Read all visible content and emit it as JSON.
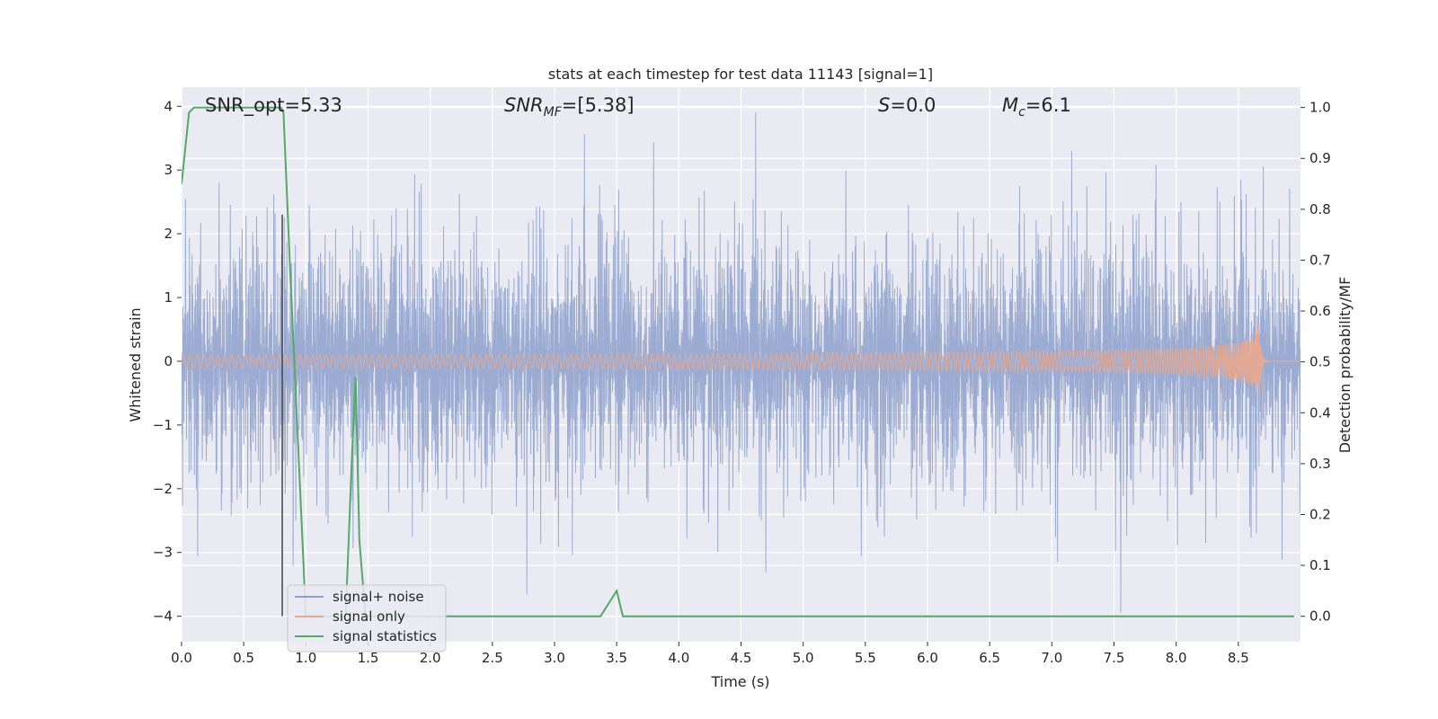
{
  "chart_data": {
    "type": "line",
    "title": "stats at each timestep for test data 11143 [signal=1]",
    "xlabel": "Time (s)",
    "ylabel": "Whitened strain",
    "y2label": "Detection probability/MF",
    "xlim": [
      0.0,
      9.0
    ],
    "ylim": [
      -4.4,
      4.3
    ],
    "y2lim": [
      -0.05,
      1.04
    ],
    "xticks": [
      "0.0",
      "0.5",
      "1.0",
      "1.5",
      "2.0",
      "2.5",
      "3.0",
      "3.5",
      "4.0",
      "4.5",
      "5.0",
      "5.5",
      "6.0",
      "6.5",
      "7.0",
      "7.5",
      "8.0",
      "8.5"
    ],
    "yticks": [
      "4",
      "3",
      "2",
      "1",
      "0",
      "−1",
      "−2",
      "−3",
      "−4"
    ],
    "y2ticks": [
      "1.0",
      "0.9",
      "0.8",
      "0.7",
      "0.6",
      "0.5",
      "0.4",
      "0.3",
      "0.2",
      "0.1",
      "0.0"
    ],
    "annotations": {
      "snr_opt": "SNR_opt=5.33",
      "snr_mf_main": "SNR",
      "snr_mf_sub": "MF",
      "snr_mf_rest": "=[5.38]",
      "s_main": "S",
      "s_rest": "=0.0",
      "mc_main": "M",
      "mc_sub": "c",
      "mc_rest": "=6.1"
    },
    "series": [
      {
        "name": "signal+ noise",
        "axis": "left",
        "color": "#8da0cb",
        "description_values": {
          "x_range": [
            0.0,
            9.0
          ],
          "typical_amplitude": 1.5,
          "peak_max": 3.9,
          "peak_min": -4.0
        }
      },
      {
        "name": "signal only",
        "axis": "left",
        "color": "#e9a98f",
        "chirp": {
          "t_start": 0.0,
          "t_merger": 8.67,
          "amp_start": 0.03,
          "amp_peak": 0.65
        }
      },
      {
        "name": "signal statistics",
        "axis": "right",
        "color": "#55a868",
        "x": [
          0.0,
          0.06,
          0.1,
          0.8,
          0.82,
          0.87,
          1.0,
          1.32,
          1.37,
          1.4,
          1.43,
          1.48,
          1.55,
          3.37,
          3.5,
          3.55,
          8.95
        ],
        "y": [
          0.85,
          0.99,
          1.0,
          1.0,
          0.99,
          0.7,
          0.0,
          0.0,
          0.31,
          0.47,
          0.15,
          0.0,
          0.0,
          0.0,
          0.05,
          0.0,
          0.0
        ]
      }
    ],
    "vline": {
      "x": 0.81,
      "y_from": -4.0,
      "y_to": 2.3,
      "color": "#444444"
    },
    "legend": {
      "placement": "lower-left",
      "entries": [
        "signal+ noise",
        "signal only",
        "signal statistics"
      ]
    },
    "grid": true,
    "colors": {
      "plot_bg": "#eaeaf2",
      "grid": "#ffffff",
      "noise": "#8da0cb",
      "signal": "#e9a98f",
      "stat": "#55a868"
    }
  }
}
